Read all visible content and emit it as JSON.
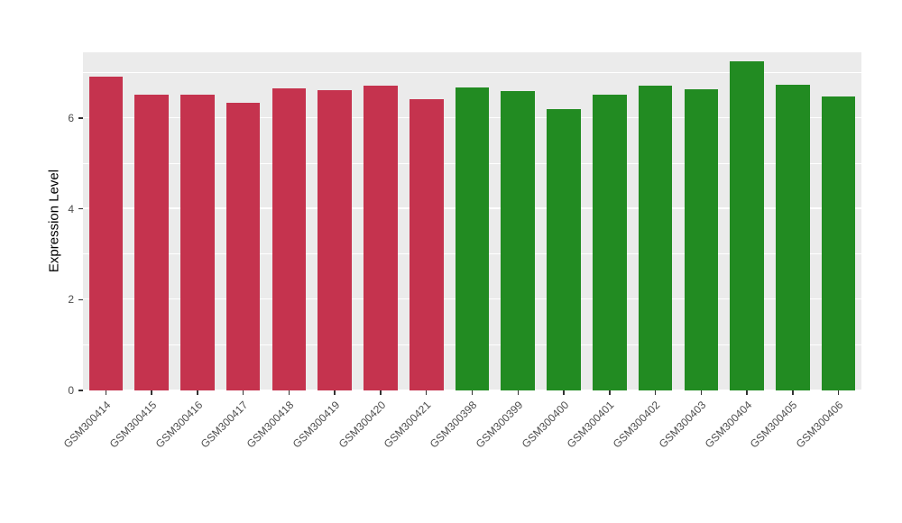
{
  "figure": {
    "background": "#FFFFFF",
    "panel_background": "#EBEBEB",
    "gridline_color": "#FFFFFF",
    "tick_color": "#333333",
    "tick_label_color": "#4D4D4D",
    "axis_title_color": "#000000"
  },
  "chart_data": {
    "type": "bar",
    "title": "",
    "xlabel": "",
    "ylabel": "Expression Level",
    "ylim": [
      0,
      7.45
    ],
    "yticks_major": [
      0,
      2,
      4,
      6
    ],
    "yticks_minor": [
      1,
      3,
      5,
      7
    ],
    "grid": true,
    "legend": "none",
    "categories": [
      "GSM300414",
      "GSM300415",
      "GSM300416",
      "GSM300417",
      "GSM300418",
      "GSM300419",
      "GSM300420",
      "GSM300421",
      "GSM300398",
      "GSM300399",
      "GSM300400",
      "GSM300401",
      "GSM300402",
      "GSM300403",
      "GSM300404",
      "GSM300405",
      "GSM300406"
    ],
    "values": [
      6.92,
      6.52,
      6.52,
      6.33,
      6.66,
      6.62,
      6.71,
      6.42,
      6.67,
      6.6,
      6.2,
      6.52,
      6.71,
      6.63,
      7.25,
      6.73,
      6.47
    ],
    "groups": [
      "A",
      "A",
      "A",
      "A",
      "A",
      "A",
      "A",
      "A",
      "B",
      "B",
      "B",
      "B",
      "B",
      "B",
      "B",
      "B",
      "B"
    ],
    "group_colors": {
      "A": "#C5334E",
      "B": "#228B22"
    }
  }
}
